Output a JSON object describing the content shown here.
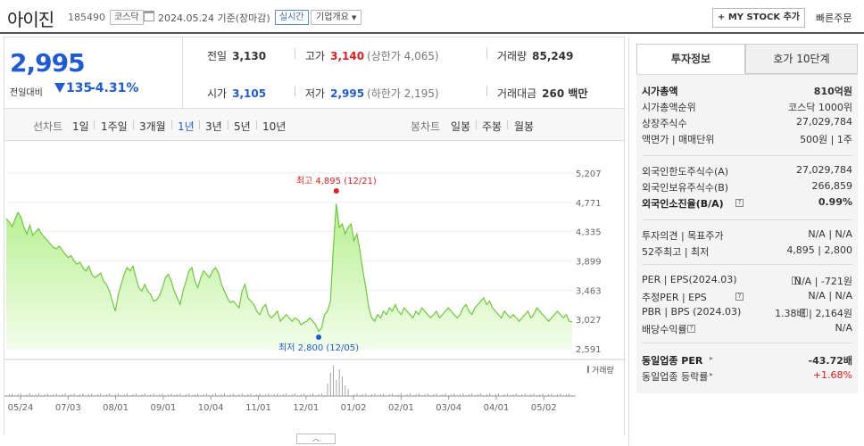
{
  "header": {
    "name": "아이진",
    "code": "185490",
    "market": "코스닥",
    "date": "2024.05.24 기준(장마감)",
    "realtime": "실시간",
    "company": "기업개요",
    "mystock": "+ MY STOCK 추가",
    "quick": "빠른주문"
  },
  "price": {
    "current": "2,995",
    "change_label": "전일대비",
    "change": "135",
    "change_pct": "-4.31%"
  },
  "stats": {
    "prev_label": "전일",
    "prev": "3,130",
    "high_label": "고가",
    "high": "3,140",
    "upper_limit": "(상한가 4,065)",
    "volume_label": "거래량",
    "volume": "85,249",
    "open_label": "시가",
    "open": "3,105",
    "low_label": "저가",
    "low": "2,995",
    "lower_limit": "(하한가 2,195)",
    "amount_label": "거래대금",
    "amount": "260 백만"
  },
  "periods": {
    "line_label": "선차트",
    "items": [
      "1일",
      "1주일",
      "3개월",
      "1년",
      "3년",
      "5년",
      "10년"
    ],
    "active": "1년",
    "candle_label": "봉차트",
    "candle_items": [
      "일봉",
      "주봉",
      "월봉"
    ]
  },
  "chart_data": {
    "type": "area",
    "y_ticks": [
      "5,207",
      "4,771",
      "4,335",
      "3,899",
      "3,463",
      "3,027",
      "2,591"
    ],
    "ylim": [
      2591,
      5207
    ],
    "x_ticks": [
      "05/24",
      "07/03",
      "08/01",
      "09/01",
      "10/04",
      "11/01",
      "12/01",
      "01/02",
      "02/01",
      "03/04",
      "04/01",
      "05/02"
    ],
    "max_label": "최고 4,895 (12/21)",
    "min_label": "최저 2,800 (12/05)",
    "volume_label": "거래량",
    "values": [
      4530,
      4480,
      4410,
      4520,
      4620,
      4550,
      4400,
      4300,
      4430,
      4280,
      4330,
      4380,
      4300,
      4250,
      4200,
      4150,
      4100,
      4080,
      4120,
      4060,
      4000,
      3950,
      3980,
      3900,
      3850,
      3880,
      3800,
      3750,
      3820,
      3700,
      3650,
      3680,
      3720,
      3600,
      3550,
      3450,
      3300,
      3150,
      3400,
      3550,
      3700,
      3800,
      3750,
      3820,
      3650,
      3500,
      3450,
      3550,
      3450,
      3400,
      3300,
      3320,
      3380,
      3500,
      3650,
      3700,
      3600,
      3450,
      3350,
      3250,
      3450,
      3600,
      3750,
      3800,
      3600,
      3500,
      3650,
      3750,
      3700,
      3650,
      3750,
      3800,
      3720,
      3550,
      3450,
      3350,
      3280,
      3300,
      3250,
      3200,
      3450,
      3550,
      3350,
      3300,
      3250,
      3150,
      3100,
      3200,
      3250,
      3100,
      3050,
      3100,
      3150,
      3000,
      3050,
      3100,
      3050,
      3000,
      3050,
      3020,
      2950,
      2980,
      3000,
      3050,
      3000,
      2950,
      2850,
      2900,
      3100,
      3150,
      3300,
      4100,
      4750,
      4400,
      4450,
      4300,
      4400,
      4450,
      4200,
      4300,
      4050,
      3750,
      3500,
      3200,
      3050,
      3000,
      3100,
      3050,
      3150,
      3100,
      3200,
      3150,
      3250,
      3150,
      3100,
      3200,
      3150,
      3100,
      3050,
      3150,
      3100,
      3200,
      3150,
      3100,
      3050,
      3100,
      3150,
      3050,
      3100,
      3150,
      3200,
      3150,
      3100,
      3050,
      3100,
      3200,
      3250,
      3150,
      3100,
      3200,
      3250,
      3300,
      3350,
      3250,
      3300,
      3200,
      3150,
      3100,
      3050,
      3150,
      3100,
      3050,
      3100,
      3050,
      3000,
      3050,
      3100,
      3150,
      3050,
      3100,
      3200,
      3150,
      3100,
      3050,
      3000,
      3050,
      3100,
      3150,
      3100,
      3050,
      3100,
      3000,
      2995
    ]
  },
  "panel": {
    "tab_active": "투자정보",
    "tab_other": "호가 10단계",
    "rows": [
      {
        "k": "시가총액",
        "v": "810억원",
        "bold": true
      },
      {
        "k": "시가총액순위",
        "v": "코스닥 1000위"
      },
      {
        "k": "상장주식수",
        "v": "27,029,784"
      },
      {
        "k": "액면가 | 매매단위",
        "v": "500원 | 1주"
      },
      {
        "k": "외국인한도주식수(A)",
        "v": "27,029,784"
      },
      {
        "k": "외국인보유주식수(B)",
        "v": "266,859"
      },
      {
        "k": "외국인소진율(B/A)",
        "v": "0.99%",
        "bold": true
      },
      {
        "k": "투자의견 | 목표주가",
        "v": "N/A | N/A"
      },
      {
        "k": "52주최고 | 최저",
        "v": "4,895 | 2,800"
      },
      {
        "k": "PER | EPS(2024.03)",
        "v": "N/A | -721원"
      },
      {
        "k": "추정PER | EPS",
        "v": "N/A | N/A"
      },
      {
        "k": "PBR | BPS (2024.03)",
        "v": "1.38배 | 2,164원"
      },
      {
        "k": "배당수익률",
        "v": "N/A"
      },
      {
        "k": "동일업종 PER",
        "v": "-43.72배",
        "bold": true
      },
      {
        "k": "동일업종 등락률",
        "v": "+1.68%",
        "red": true
      }
    ]
  }
}
